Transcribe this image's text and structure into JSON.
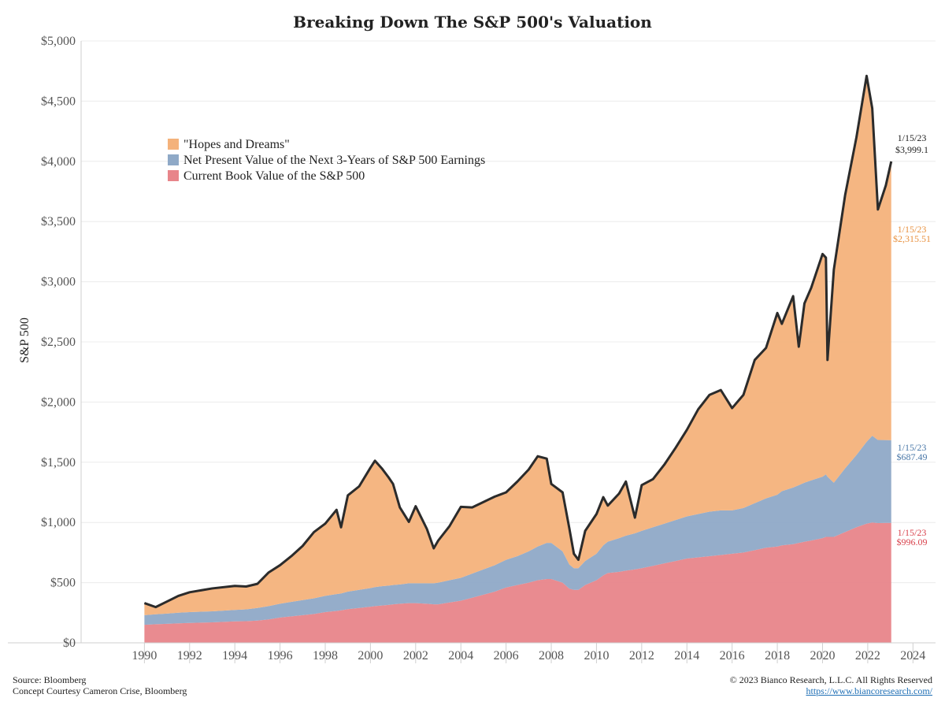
{
  "chart_data": {
    "type": "area",
    "title": "Breaking Down The S&P 500's Valuation",
    "ylabel": "S&P 500",
    "xlabel": "",
    "xlim": [
      1987.2,
      2025.0
    ],
    "ylim": [
      0,
      5000
    ],
    "y_ticks": [
      "$0",
      "$500",
      "$1,000",
      "$1,500",
      "$2,000",
      "$2,500",
      "$3,000",
      "$3,500",
      "$4,000",
      "$4,500",
      "$5,000"
    ],
    "x_ticks": [
      "1990",
      "1992",
      "1994",
      "1996",
      "1998",
      "2000",
      "2002",
      "2004",
      "2006",
      "2008",
      "2010",
      "2012",
      "2014",
      "2016",
      "2018",
      "2020",
      "2022",
      "2024"
    ],
    "grid": "horizontal",
    "legend_position": "top-left",
    "stacking": "stacked",
    "x": [
      1990.0,
      1990.5,
      1991.0,
      1991.5,
      1992.0,
      1993.0,
      1994.0,
      1994.5,
      1995.0,
      1995.5,
      1996.0,
      1996.5,
      1997.0,
      1997.5,
      1998.0,
      1998.5,
      1998.7,
      1999.0,
      1999.5,
      2000.0,
      2000.2,
      2000.5,
      2000.8,
      2001.0,
      2001.3,
      2001.7,
      2002.0,
      2002.5,
      2002.8,
      2003.0,
      2003.5,
      2004.0,
      2004.5,
      2005.0,
      2005.5,
      2006.0,
      2006.5,
      2007.0,
      2007.4,
      2007.8,
      2008.0,
      2008.5,
      2008.8,
      2009.0,
      2009.2,
      2009.5,
      2010.0,
      2010.3,
      2010.5,
      2011.0,
      2011.3,
      2011.7,
      2012.0,
      2012.5,
      2013.0,
      2013.5,
      2014.0,
      2014.5,
      2015.0,
      2015.5,
      2016.0,
      2016.5,
      2017.0,
      2017.5,
      2018.0,
      2018.2,
      2018.7,
      2018.95,
      2019.2,
      2019.5,
      2020.0,
      2020.15,
      2020.22,
      2020.5,
      2021.0,
      2021.5,
      2021.95,
      2022.2,
      2022.45,
      2022.8,
      2023.04
    ],
    "series": [
      {
        "name": "Current Book Value of the S&P 500",
        "color": "#e8858a",
        "values": [
          150,
          155,
          158,
          162,
          165,
          170,
          178,
          180,
          185,
          195,
          210,
          220,
          230,
          240,
          255,
          265,
          270,
          280,
          290,
          300,
          305,
          310,
          315,
          320,
          325,
          330,
          330,
          325,
          320,
          320,
          335,
          350,
          375,
          400,
          425,
          460,
          480,
          500,
          520,
          530,
          530,
          500,
          450,
          440,
          440,
          480,
          520,
          560,
          580,
          590,
          600,
          610,
          620,
          640,
          660,
          680,
          700,
          710,
          720,
          730,
          740,
          750,
          770,
          790,
          800,
          810,
          820,
          830,
          840,
          850,
          870,
          880,
          880,
          880,
          920,
          960,
          990,
          1000,
          995,
          996,
          996.09
        ]
      },
      {
        "name": "Net Present Value of the Next 3-Years of S&P 500 Earnings",
        "color": "#8fa9c7",
        "values": [
          80,
          82,
          85,
          88,
          90,
          92,
          95,
          98,
          105,
          110,
          115,
          120,
          125,
          130,
          135,
          140,
          140,
          145,
          150,
          155,
          158,
          160,
          160,
          160,
          160,
          165,
          165,
          170,
          175,
          180,
          185,
          190,
          200,
          210,
          220,
          230,
          240,
          260,
          280,
          300,
          300,
          260,
          200,
          180,
          180,
          200,
          220,
          250,
          260,
          280,
          290,
          300,
          310,
          320,
          330,
          340,
          350,
          360,
          370,
          370,
          360,
          370,
          390,
          410,
          430,
          450,
          470,
          480,
          490,
          500,
          510,
          520,
          500,
          450,
          530,
          600,
          680,
          720,
          690,
          688,
          687.49
        ]
      },
      {
        "name": "\"Hopes and Dreams\"",
        "color": "#f4b27b",
        "values": [
          100,
          60,
          100,
          140,
          165,
          190,
          200,
          190,
          200,
          280,
          320,
          380,
          450,
          550,
          600,
          700,
          550,
          800,
          860,
          1000,
          1050,
          980,
          900,
          840,
          640,
          510,
          640,
          450,
          290,
          350,
          450,
          590,
          550,
          560,
          570,
          560,
          620,
          680,
          750,
          700,
          490,
          490,
          300,
          120,
          70,
          250,
          330,
          400,
          300,
          370,
          450,
          130,
          380,
          400,
          490,
          600,
          720,
          870,
          970,
          1000,
          850,
          940,
          1190,
          1250,
          1510,
          1390,
          1590,
          1150,
          1490,
          1600,
          1850,
          1800,
          970,
          1770,
          2270,
          2640,
          3040,
          2720,
          1915,
          2115,
          2315.51
        ]
      }
    ],
    "total_line": {
      "name": "S&P 500",
      "color": "#2b2b2b",
      "values": [
        330,
        297,
        343,
        390,
        420,
        452,
        473,
        468,
        490,
        585,
        645,
        720,
        805,
        920,
        990,
        1105,
        960,
        1225,
        1300,
        1455,
        1513,
        1450,
        1375,
        1320,
        1125,
        1005,
        1135,
        945,
        785,
        850,
        970,
        1130,
        1125,
        1170,
        1215,
        1250,
        1340,
        1440,
        1550,
        1530,
        1320,
        1250,
        950,
        740,
        690,
        930,
        1070,
        1210,
        1140,
        1240,
        1340,
        1040,
        1310,
        1360,
        1480,
        1620,
        1770,
        1940,
        2060,
        2100,
        1950,
        2060,
        2350,
        2450,
        2740,
        2650,
        2880,
        2460,
        2820,
        2950,
        3230,
        3200,
        2350,
        3100,
        3720,
        4200,
        4710,
        4440,
        3600,
        3800,
        3999.1
      ]
    },
    "annotations": [
      {
        "date": "1/15/23",
        "value": "$3,999.1",
        "color": "#222222"
      },
      {
        "date": "1/15/23",
        "value": "$2,315.51",
        "color": "#e8913f"
      },
      {
        "date": "1/15/23",
        "value": "$687.49",
        "color": "#4a78a8"
      },
      {
        "date": "1/15/23",
        "value": "$996.09",
        "color": "#d9434d"
      }
    ],
    "legend": [
      {
        "label": "\"Hopes and Dreams\"",
        "color": "#f4b27b"
      },
      {
        "label": "Net Present Value of the Next 3-Years of S&P 500 Earnings",
        "color": "#8fa9c7"
      },
      {
        "label": "Current Book Value of the S&P 500",
        "color": "#e8858a"
      }
    ]
  },
  "footer": {
    "source": "Source: Bloomberg",
    "concept": "Concept Courtesy Cameron Crise, Bloomberg",
    "copyright": "© 2023 Bianco Research, L.L.C. All Rights Reserved",
    "url": "https://www.biancoresearch.com/"
  }
}
